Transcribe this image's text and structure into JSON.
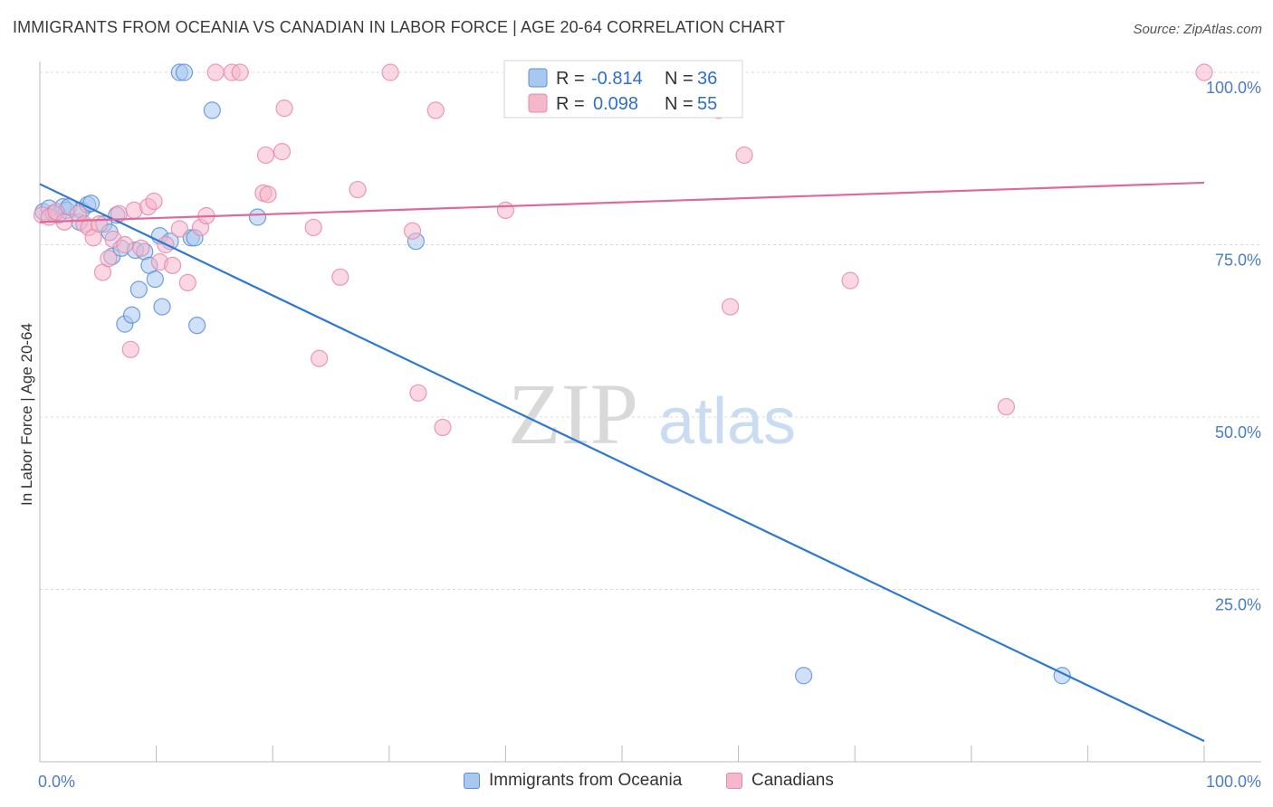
{
  "title": "IMMIGRANTS FROM OCEANIA VS CANADIAN IN LABOR FORCE | AGE 20-64 CORRELATION CHART",
  "source": "Source: ZipAtlas.com",
  "watermark": {
    "part1": "ZIP",
    "part2": "atlas"
  },
  "colors": {
    "blue_fill": "#a9c8f0",
    "blue_stroke": "#5b8fd6",
    "blue_line": "#2f78d0",
    "pink_fill": "#f5b7ca",
    "pink_stroke": "#e58aa8",
    "pink_line": "#e0689a",
    "tick_label": "#4a7cc7",
    "grid": "#d8d8d8"
  },
  "legend": {
    "series": [
      {
        "r_label": "R =",
        "r_value": "-0.814",
        "n_label": "N =",
        "n_value": "36"
      },
      {
        "r_label": "R =",
        "r_value": "0.098",
        "n_label": "N =",
        "n_value": "55"
      }
    ]
  },
  "chart_data": {
    "type": "scatter",
    "title": "IMMIGRANTS FROM OCEANIA VS CANADIAN IN LABOR FORCE | AGE 20-64 CORRELATION CHART",
    "xlabel": "",
    "ylabel": "In Labor Force | Age 20-64",
    "xlim": [
      0,
      100
    ],
    "ylim": [
      0,
      100
    ],
    "x_tick_labels": [
      "0.0%",
      "100.0%"
    ],
    "y_ticks": [
      100,
      75,
      50,
      25
    ],
    "y_tick_labels": [
      "100.0%",
      "75.0%",
      "50.0%",
      "25.0%"
    ],
    "grid": true,
    "legend_position": "top-center",
    "series": [
      {
        "name": "Immigrants from Oceania",
        "color": "#a9c8f0",
        "trend": {
          "x": [
            0,
            100
          ],
          "y": [
            83.8,
            3.0
          ]
        },
        "points": [
          [
            0.3,
            79.8
          ],
          [
            0.8,
            80.3
          ],
          [
            1.6,
            79.3
          ],
          [
            2.0,
            80.5
          ],
          [
            2.3,
            80.0
          ],
          [
            2.5,
            80.5
          ],
          [
            3.4,
            78.3
          ],
          [
            3.6,
            80.0
          ],
          [
            4.1,
            80.8
          ],
          [
            4.4,
            81.0
          ],
          [
            5.5,
            78.0
          ],
          [
            6.0,
            76.8
          ],
          [
            6.2,
            73.3
          ],
          [
            6.6,
            79.3
          ],
          [
            7.0,
            74.5
          ],
          [
            7.3,
            63.5
          ],
          [
            7.9,
            64.8
          ],
          [
            8.2,
            74.2
          ],
          [
            8.5,
            68.5
          ],
          [
            9.0,
            74.0
          ],
          [
            9.4,
            72.0
          ],
          [
            9.9,
            70.0
          ],
          [
            10.3,
            76.3
          ],
          [
            10.5,
            66.0
          ],
          [
            11.2,
            75.5
          ],
          [
            12.0,
            100.0
          ],
          [
            12.4,
            100.0
          ],
          [
            13.5,
            63.3
          ],
          [
            14.8,
            94.5
          ],
          [
            13.0,
            76.0
          ],
          [
            13.3,
            76.0
          ],
          [
            18.7,
            79.0
          ],
          [
            32.3,
            75.5
          ],
          [
            65.6,
            12.5
          ],
          [
            87.8,
            12.5
          ],
          [
            1.2,
            79.5
          ]
        ]
      },
      {
        "name": "Canadians",
        "color": "#f5b7ca",
        "trend": {
          "x": [
            0,
            100
          ],
          "y": [
            78.3,
            84.0
          ]
        },
        "points": [
          [
            0.2,
            79.3
          ],
          [
            0.8,
            79.0
          ],
          [
            1.4,
            79.8
          ],
          [
            2.1,
            78.3
          ],
          [
            3.3,
            79.5
          ],
          [
            3.8,
            78.0
          ],
          [
            4.2,
            77.5
          ],
          [
            4.6,
            76.0
          ],
          [
            5.1,
            78.0
          ],
          [
            5.4,
            71.0
          ],
          [
            5.9,
            73.0
          ],
          [
            6.3,
            75.8
          ],
          [
            6.8,
            79.5
          ],
          [
            7.3,
            75.0
          ],
          [
            7.8,
            59.8
          ],
          [
            8.1,
            80.0
          ],
          [
            8.7,
            74.5
          ],
          [
            9.3,
            80.5
          ],
          [
            9.8,
            81.3
          ],
          [
            10.3,
            72.5
          ],
          [
            10.8,
            75.0
          ],
          [
            11.4,
            72.0
          ],
          [
            12.0,
            77.3
          ],
          [
            12.7,
            69.5
          ],
          [
            13.8,
            77.5
          ],
          [
            14.3,
            79.2
          ],
          [
            15.1,
            100.0
          ],
          [
            16.5,
            100.0
          ],
          [
            17.2,
            100.0
          ],
          [
            19.2,
            82.5
          ],
          [
            19.6,
            82.3
          ],
          [
            19.4,
            88.0
          ],
          [
            20.8,
            88.5
          ],
          [
            21.0,
            94.8
          ],
          [
            23.5,
            77.5
          ],
          [
            24.0,
            58.5
          ],
          [
            25.8,
            70.3
          ],
          [
            27.3,
            83.0
          ],
          [
            30.1,
            100.0
          ],
          [
            32.0,
            77.0
          ],
          [
            32.5,
            53.5
          ],
          [
            34.0,
            94.5
          ],
          [
            34.6,
            48.5
          ],
          [
            40.0,
            80.0
          ],
          [
            40.8,
            100.0
          ],
          [
            41.8,
            100.0
          ],
          [
            53.5,
            100.0
          ],
          [
            54.0,
            100.0
          ],
          [
            58.3,
            94.5
          ],
          [
            58.8,
            100.0
          ],
          [
            59.3,
            66.0
          ],
          [
            60.5,
            88.0
          ],
          [
            69.6,
            69.8
          ],
          [
            83.0,
            51.5
          ],
          [
            100.0,
            100.0
          ]
        ]
      }
    ]
  }
}
